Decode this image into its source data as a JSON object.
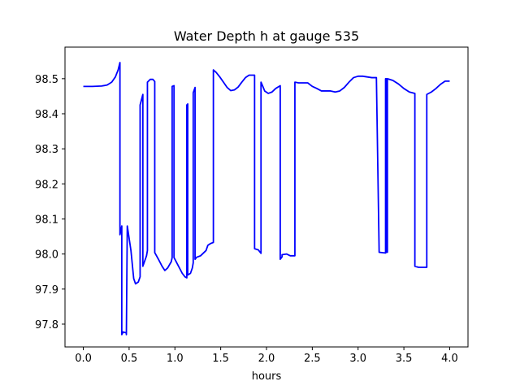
{
  "chart_data": {
    "type": "line",
    "title": "Water Depth h at gauge 535",
    "xlabel": "hours",
    "ylabel": "",
    "xlim": [
      -0.2,
      4.2
    ],
    "ylim": [
      97.735,
      98.59
    ],
    "xticks": [
      0.0,
      0.5,
      1.0,
      1.5,
      2.0,
      2.5,
      3.0,
      3.5,
      4.0
    ],
    "xtick_labels": [
      "0.0",
      "0.5",
      "1.0",
      "1.5",
      "2.0",
      "2.5",
      "3.0",
      "3.5",
      "4.0"
    ],
    "yticks": [
      97.8,
      97.9,
      98.0,
      98.1,
      98.2,
      98.3,
      98.4,
      98.5
    ],
    "ytick_labels": [
      "97.8",
      "97.9",
      "98.0",
      "98.1",
      "98.2",
      "98.3",
      "98.4",
      "98.5"
    ],
    "grid": false,
    "series": [
      {
        "color": "#0000ff",
        "x": [
          0.0,
          0.1,
          0.2,
          0.26,
          0.31,
          0.35,
          0.38,
          0.4,
          0.4,
          0.42,
          0.42,
          0.43,
          0.43,
          0.47,
          0.47,
          0.48,
          0.48,
          0.52,
          0.55,
          0.57,
          0.6,
          0.62,
          0.62,
          0.65,
          0.65,
          0.67,
          0.69,
          0.7,
          0.7,
          0.73,
          0.76,
          0.78,
          0.78,
          0.82,
          0.86,
          0.89,
          0.92,
          0.96,
          0.97,
          0.97,
          0.99,
          0.99,
          1.02,
          1.05,
          1.08,
          1.11,
          1.13,
          1.13,
          1.14,
          1.14,
          1.17,
          1.19,
          1.2,
          1.2,
          1.22,
          1.22,
          1.23,
          1.23,
          1.28,
          1.34,
          1.36,
          1.39,
          1.42,
          1.42,
          1.45,
          1.49,
          1.53,
          1.57,
          1.61,
          1.65,
          1.69,
          1.73,
          1.77,
          1.81,
          1.87,
          1.87,
          1.91,
          1.94,
          1.94,
          1.96,
          1.98,
          2.02,
          2.06,
          2.1,
          2.15,
          2.15,
          2.17,
          2.17,
          2.22,
          2.26,
          2.31,
          2.31,
          2.35,
          2.4,
          2.45,
          2.5,
          2.55,
          2.6,
          2.65,
          2.7,
          2.75,
          2.8,
          2.85,
          2.9,
          2.95,
          3.0,
          3.05,
          3.1,
          3.15,
          3.2,
          3.23,
          3.23,
          3.3,
          3.3,
          3.31,
          3.31,
          3.32,
          3.32,
          3.38,
          3.44,
          3.5,
          3.56,
          3.62,
          3.62,
          3.66,
          3.7,
          3.74,
          3.75,
          3.75,
          3.8,
          3.85,
          3.9,
          3.95,
          4.0
        ],
        "y": [
          98.478,
          98.478,
          98.479,
          98.482,
          98.49,
          98.505,
          98.525,
          98.546,
          98.055,
          98.08,
          97.77,
          97.775,
          97.778,
          97.775,
          97.77,
          98.08,
          98.08,
          98.01,
          97.93,
          97.915,
          97.92,
          97.935,
          98.425,
          98.455,
          97.965,
          97.98,
          97.995,
          98.01,
          98.49,
          98.498,
          98.498,
          98.492,
          98.004,
          97.985,
          97.965,
          97.953,
          97.96,
          97.978,
          97.99,
          98.478,
          98.48,
          97.99,
          97.975,
          97.96,
          97.945,
          97.935,
          97.932,
          98.425,
          98.428,
          97.94,
          97.945,
          97.96,
          97.975,
          98.46,
          98.475,
          97.985,
          97.988,
          97.99,
          97.995,
          98.01,
          98.025,
          98.03,
          98.033,
          98.525,
          98.518,
          98.505,
          98.49,
          98.475,
          98.466,
          98.468,
          98.476,
          98.49,
          98.503,
          98.51,
          98.51,
          98.015,
          98.012,
          98.002,
          98.49,
          98.478,
          98.465,
          98.458,
          98.462,
          98.472,
          98.48,
          97.985,
          97.992,
          97.998,
          98.0,
          97.995,
          97.995,
          98.49,
          98.488,
          98.488,
          98.488,
          98.478,
          98.472,
          98.465,
          98.465,
          98.465,
          98.462,
          98.465,
          98.475,
          98.49,
          98.503,
          98.507,
          98.507,
          98.505,
          98.503,
          98.503,
          98.005,
          98.005,
          98.003,
          98.5,
          98.5,
          98.005,
          98.005,
          98.5,
          98.495,
          98.485,
          98.472,
          98.462,
          98.458,
          97.965,
          97.962,
          97.962,
          97.962,
          97.962,
          98.455,
          98.462,
          98.472,
          98.484,
          98.493,
          98.493
        ]
      }
    ]
  }
}
